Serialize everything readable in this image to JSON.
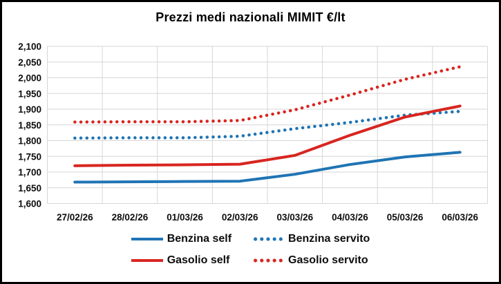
{
  "chart_data": {
    "type": "line",
    "title": "Prezzi medi nazionali MIMIT €/lt",
    "categories": [
      "27/02/26",
      "28/02/26",
      "01/03/26",
      "02/03/26",
      "03/03/26",
      "04/03/26",
      "05/03/26",
      "06/03/26"
    ],
    "y_ticks": [
      {
        "label": "2,100",
        "value": 2100
      },
      {
        "label": "2,050",
        "value": 2050
      },
      {
        "label": "2,000",
        "value": 2000
      },
      {
        "label": "1,950",
        "value": 1950
      },
      {
        "label": "1,900",
        "value": 1900
      },
      {
        "label": "1,850",
        "value": 1850
      },
      {
        "label": "1,800",
        "value": 1800
      },
      {
        "label": "1,750",
        "value": 1750
      },
      {
        "label": "1,700",
        "value": 1700
      },
      {
        "label": "1,650",
        "value": 1650
      },
      {
        "label": "1,600",
        "value": 1600
      }
    ],
    "ylim": [
      1600,
      2100
    ],
    "grid": true,
    "legend_position": "bottom",
    "series": [
      {
        "name": "Benzina self",
        "color": "#1f74b4",
        "style": "solid",
        "values": [
          1668,
          1669,
          1670,
          1671,
          1693,
          1724,
          1748,
          1763
        ]
      },
      {
        "name": "Benzina servito",
        "color": "#1f74b4",
        "style": "dotted",
        "values": [
          1808,
          1809,
          1809,
          1814,
          1838,
          1858,
          1881,
          1893
        ]
      },
      {
        "name": "Gasolio self",
        "color": "#d8251f",
        "style": "solid",
        "values": [
          1720,
          1722,
          1723,
          1725,
          1753,
          1817,
          1875,
          1910
        ]
      },
      {
        "name": "Gasolio servito",
        "color": "#d8251f",
        "style": "dotted",
        "values": [
          1859,
          1860,
          1860,
          1864,
          1898,
          1945,
          1995,
          2035
        ]
      }
    ],
    "colors": {
      "grid": "#d6d6d6",
      "text": "#0d0d0d",
      "background": "#ffffff",
      "border": "#000000"
    }
  }
}
